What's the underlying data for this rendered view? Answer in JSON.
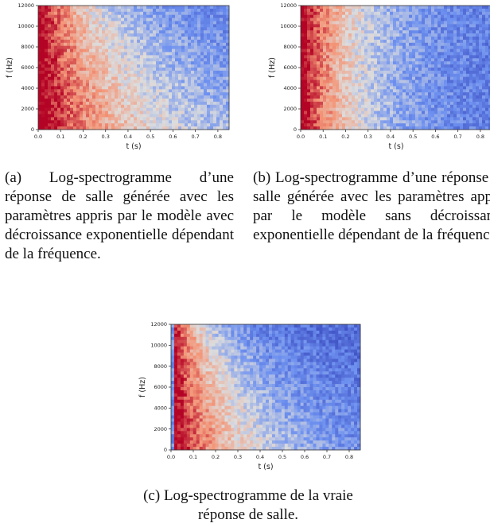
{
  "figures": [
    {
      "id": "a",
      "caption": "(a) Log-spectrogramme d’une réponse de salle générée avec les paramètres appris par le modèle avec décroissance exponentielle dépendant de la fréquence."
    },
    {
      "id": "b",
      "caption": "(b) Log-spectrogramme d’une réponse de salle générée avec les paramètres appris par le modèle sans décroissance exponentielle dépendant de la fréquence."
    },
    {
      "id": "c",
      "caption": "(c) Log-spectrogramme de la vraie réponse de salle."
    }
  ],
  "chart_data": [
    {
      "type": "heatmap",
      "panel": "a",
      "xlabel": "t (s)",
      "ylabel": "f (Hz)",
      "xlim": [
        0.0,
        0.85
      ],
      "ylim": [
        0,
        12000
      ],
      "xticks": [
        "0.0",
        "0.1",
        "0.2",
        "0.3",
        "0.4",
        "0.5",
        "0.6",
        "0.7",
        "0.8"
      ],
      "yticks": [
        "0",
        "2000",
        "4000",
        "6000",
        "8000",
        "10000",
        "12000"
      ],
      "colormap": "coolwarm",
      "decay": "frequency-dependent"
    },
    {
      "type": "heatmap",
      "panel": "b",
      "xlabel": "t (s)",
      "ylabel": "f (Hz)",
      "xlim": [
        0.0,
        0.85
      ],
      "ylim": [
        0,
        12000
      ],
      "xticks": [
        "0.0",
        "0.1",
        "0.2",
        "0.3",
        "0.4",
        "0.5",
        "0.6",
        "0.7",
        "0.8"
      ],
      "yticks": [
        "0",
        "2000",
        "4000",
        "6000",
        "8000",
        "10000",
        "12000"
      ],
      "colormap": "coolwarm",
      "decay": "uniform"
    },
    {
      "type": "heatmap",
      "panel": "c",
      "xlabel": "t (s)",
      "ylabel": "f (Hz)",
      "xlim": [
        0.0,
        0.85
      ],
      "ylim": [
        0,
        12000
      ],
      "xticks": [
        "0.0",
        "0.1",
        "0.2",
        "0.3",
        "0.4",
        "0.5",
        "0.6",
        "0.7",
        "0.8"
      ],
      "yticks": [
        "0",
        "2000",
        "4000",
        "6000",
        "8000",
        "10000",
        "12000"
      ],
      "colormap": "coolwarm",
      "decay": "measured"
    }
  ]
}
